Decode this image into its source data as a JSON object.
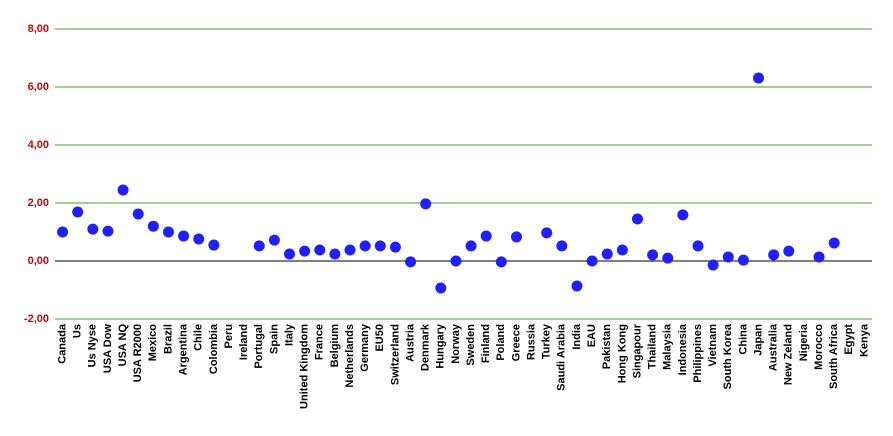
{
  "chart_data": {
    "type": "dot",
    "categories": [
      "Canada",
      "Us",
      "Us Nyse",
      "USA Dow",
      "USA NQ",
      "USA R2000",
      "Mexico",
      "Brazil",
      "Argentina",
      "Chile",
      "Colombia",
      "Peru",
      "Ireland",
      "Portugal",
      "Spain",
      "Italy",
      "United Kingdom",
      "France",
      "Belgium",
      "Netherlands",
      "Germany",
      "EU50",
      "Switzerland",
      "Austria",
      "Denmark",
      "Hungary",
      "Norway",
      "Sweden",
      "Finland",
      "Poland",
      "Greece",
      "Russia",
      "Turkey",
      "Saudi Arabia",
      "India",
      "EAU",
      "Pakistan",
      "Hong Kong",
      "Singapour",
      "Thailand",
      "Malaysia",
      "Indonesia",
      "Philippines",
      "Vietnam",
      "South Korea",
      "China",
      "Japan",
      "Australia",
      "New Zeland",
      "Nigeria",
      "Morocco",
      "South Africa",
      "Egypt",
      "Kenya"
    ],
    "values": [
      1.0,
      1.69,
      1.1,
      1.03,
      2.45,
      1.62,
      1.2,
      1.0,
      0.86,
      0.76,
      0.55,
      null,
      null,
      0.52,
      0.72,
      0.24,
      0.34,
      0.38,
      0.24,
      0.38,
      0.52,
      0.52,
      0.48,
      -0.03,
      1.97,
      -0.93,
      0.0,
      0.52,
      0.86,
      -0.03,
      0.83,
      null,
      0.97,
      0.52,
      -0.86,
      0.0,
      0.24,
      0.38,
      1.45,
      0.21,
      0.1,
      1.59,
      0.52,
      -0.14,
      0.14,
      0.03,
      6.31,
      0.21,
      0.34,
      null,
      0.14,
      0.62,
      null,
      null
    ],
    "color": "#1f1fff",
    "ylim": [
      -2,
      8
    ],
    "yticks": [
      {
        "value": -2,
        "label": "-2,00"
      },
      {
        "value": 0,
        "label": "0,00"
      },
      {
        "value": 2,
        "label": "2,00"
      },
      {
        "value": 4,
        "label": "4,00"
      },
      {
        "value": 6,
        "label": "6,00"
      },
      {
        "value": 8,
        "label": "8,00"
      }
    ],
    "grid": true,
    "grid_color": "#4f9a2e",
    "tick_label_color": "#cc0000"
  }
}
